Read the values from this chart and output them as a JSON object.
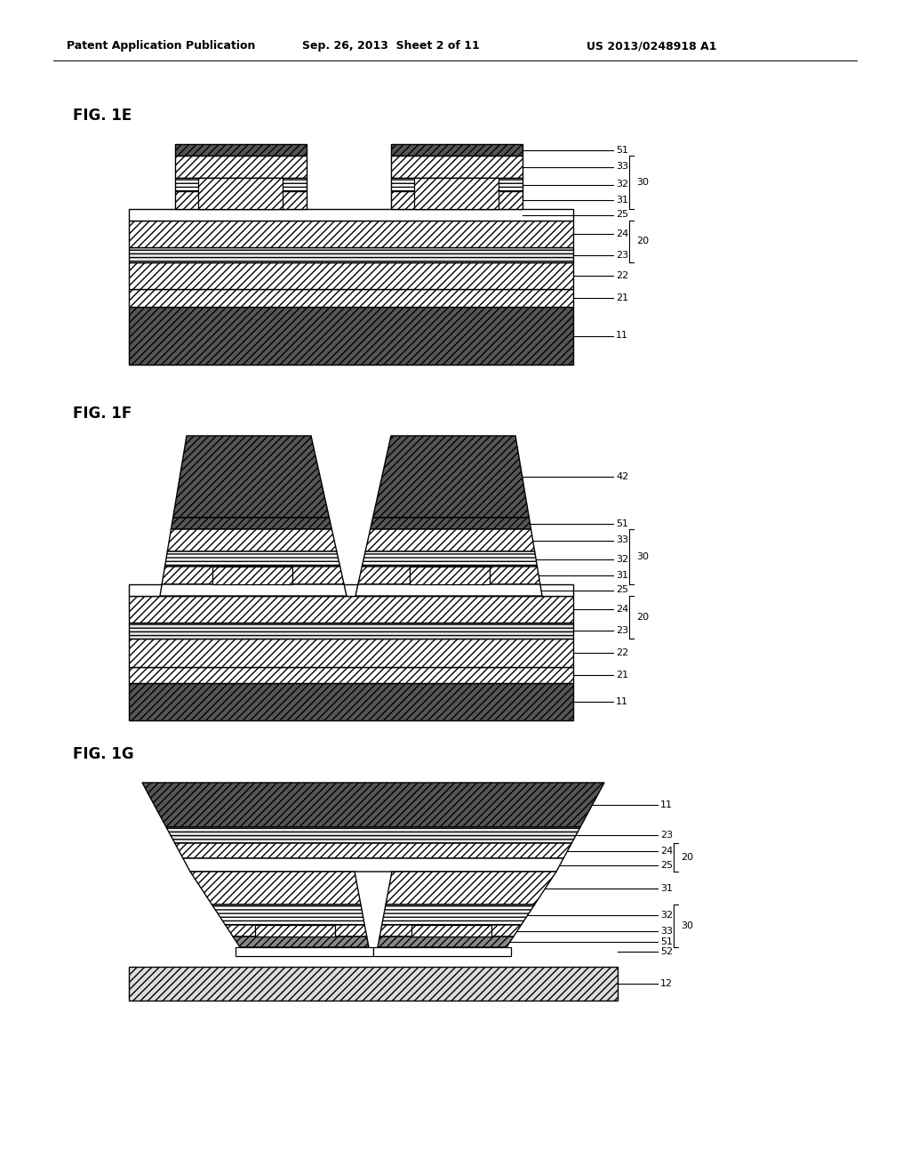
{
  "title_left": "Patent Application Publication",
  "title_center": "Sep. 26, 2013  Sheet 2 of 11",
  "title_right": "US 2013/0248918 A1",
  "bg_color": "#ffffff"
}
